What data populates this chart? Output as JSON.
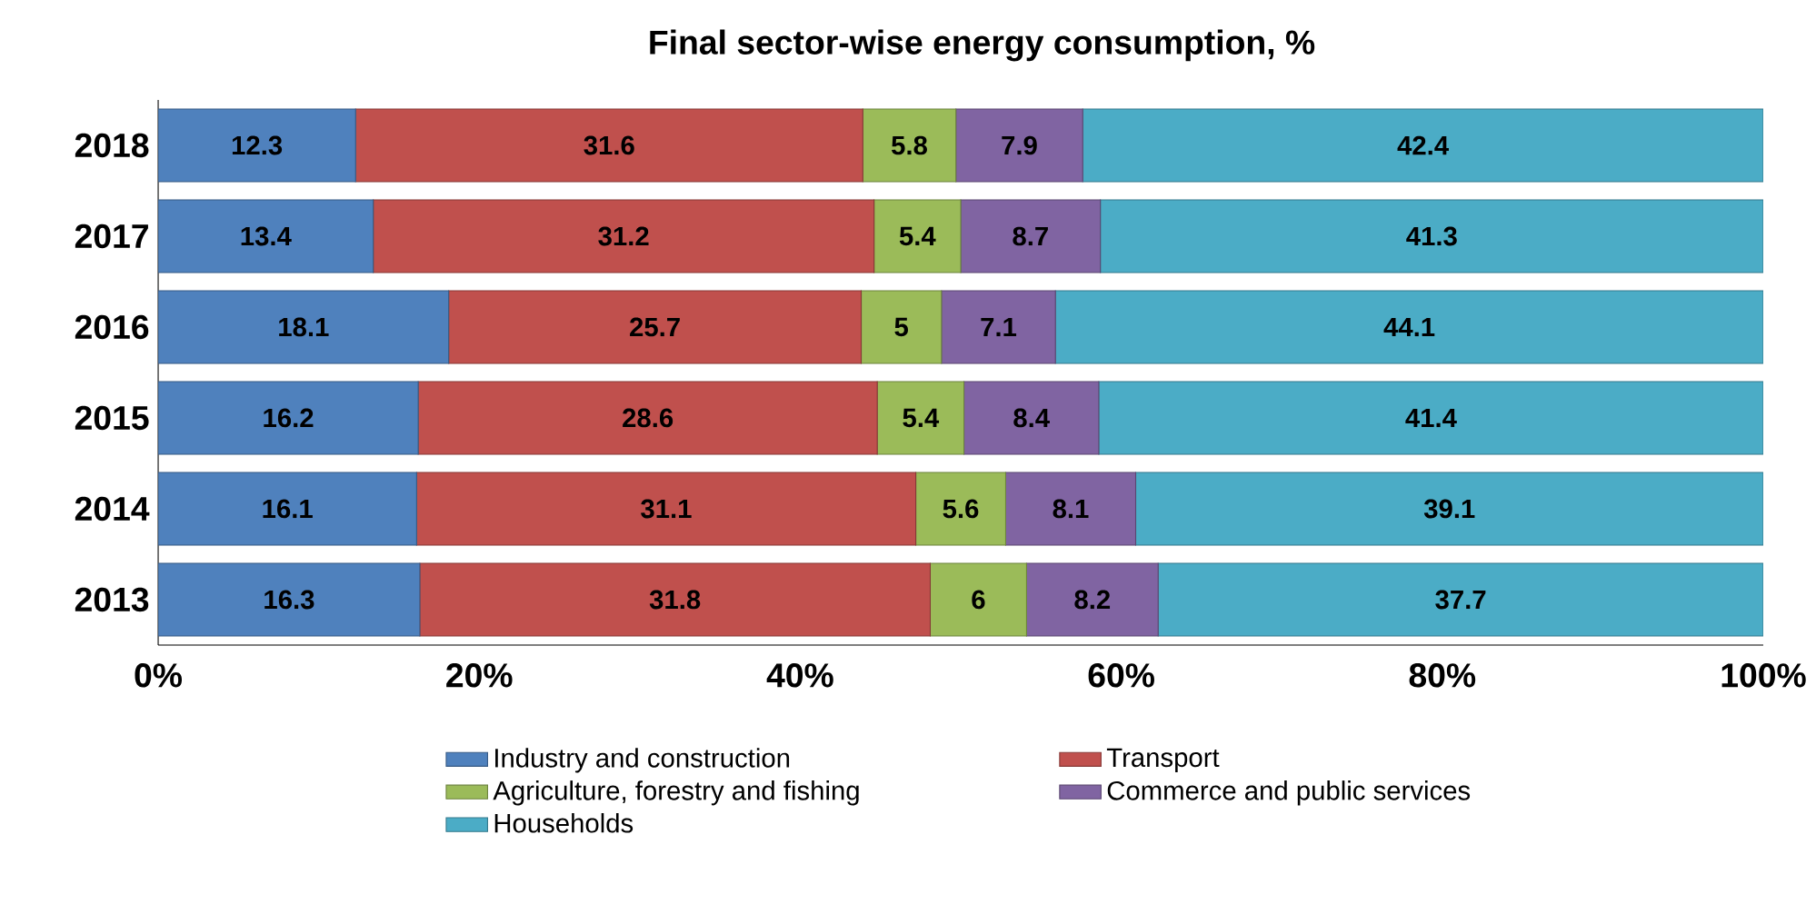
{
  "chart_data": {
    "type": "bar",
    "orientation": "horizontal",
    "stacked": true,
    "title": "Final sector-wise energy consumption, %",
    "categories": [
      "2018",
      "2017",
      "2016",
      "2015",
      "2014",
      "2013"
    ],
    "series": [
      {
        "name": "Industry and construction",
        "color": "#4f81bd",
        "values": [
          12.3,
          13.4,
          18.1,
          16.2,
          16.1,
          16.3
        ]
      },
      {
        "name": "Transport",
        "color": "#c0504d",
        "values": [
          31.6,
          31.2,
          25.7,
          28.6,
          31.1,
          31.8
        ]
      },
      {
        "name": "Agriculture, forestry and fishing",
        "color": "#9bbb59",
        "values": [
          5.8,
          5.4,
          5,
          5.4,
          5.6,
          6
        ]
      },
      {
        "name": "Commerce and public services",
        "color": "#8064a2",
        "values": [
          7.9,
          8.7,
          7.1,
          8.4,
          8.1,
          8.2
        ]
      },
      {
        "name": "Households",
        "color": "#4bacc6",
        "values": [
          42.4,
          41.3,
          44.1,
          41.4,
          39.1,
          37.7
        ]
      }
    ],
    "xlim": [
      0,
      100
    ],
    "xticks": [
      {
        "value": 0,
        "label": "0%"
      },
      {
        "value": 20,
        "label": "20%"
      },
      {
        "value": 40,
        "label": "40%"
      },
      {
        "value": 60,
        "label": "60%"
      },
      {
        "value": 80,
        "label": "80%"
      },
      {
        "value": 100,
        "label": "100%"
      }
    ],
    "data_labels": true,
    "legend": "bottom"
  }
}
